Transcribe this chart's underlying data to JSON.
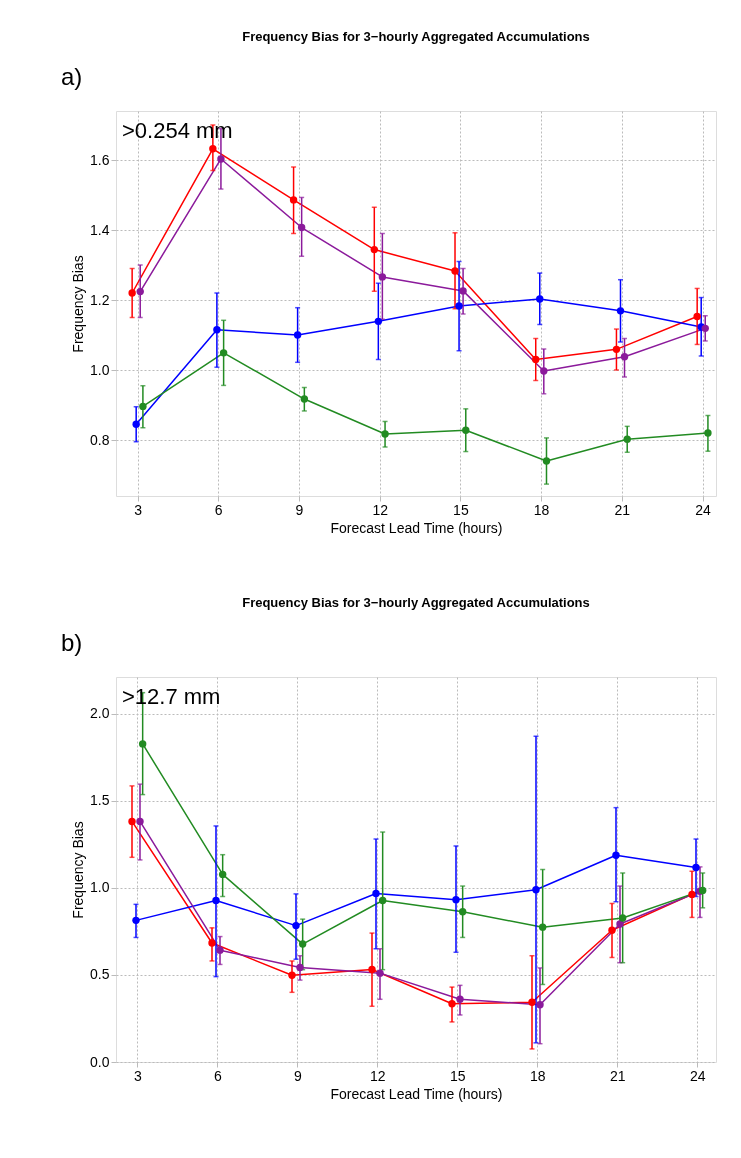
{
  "chart_data": [
    {
      "type": "line",
      "title": "Frequency Bias for 3−hourly Aggregated Accumulations",
      "xlabel": "Forecast Lead Time (hours)",
      "ylabel": "Frequency Bias",
      "annotations": [
        "a)",
        ">0.254 mm"
      ],
      "xlim": [
        2.2,
        24.5
      ],
      "xticks": [
        3,
        6,
        9,
        12,
        15,
        18,
        21,
        24
      ],
      "ylim": [
        0.64,
        1.74
      ],
      "yticks": [
        {
          "value": 0.8,
          "label": "0.8"
        },
        {
          "value": 1.0,
          "label": "1.0"
        },
        {
          "value": 1.2,
          "label": "1.2"
        },
        {
          "value": 1.4,
          "label": "1.4"
        },
        {
          "value": 1.6,
          "label": "1.6"
        }
      ],
      "grid": true,
      "legend": false,
      "marker": "circle",
      "line_style": "solid",
      "series": [
        {
          "color": "#ff0000",
          "x": [
            2.8,
            5.8,
            8.8,
            11.8,
            14.8,
            17.8,
            20.8,
            23.8
          ],
          "values": [
            1.22,
            1.632,
            1.486,
            1.344,
            1.283,
            1.03,
            1.059,
            1.153
          ],
          "errors": [
            [
              1.15,
              1.29
            ],
            [
              1.57,
              1.7
            ],
            [
              1.39,
              1.58
            ],
            [
              1.225,
              1.465
            ],
            [
              1.175,
              1.392
            ],
            [
              0.97,
              1.09
            ],
            [
              1.0,
              1.117
            ],
            [
              1.073,
              1.233
            ]
          ]
        },
        {
          "color": "#0000ff",
          "x": [
            2.95,
            5.95,
            8.95,
            11.95,
            14.95,
            17.95,
            20.95,
            23.95
          ],
          "values": [
            0.845,
            1.115,
            1.1,
            1.139,
            1.183,
            1.203,
            1.169,
            1.123
          ],
          "errors": [
            [
              0.795,
              0.895
            ],
            [
              1.008,
              1.22
            ],
            [
              1.022,
              1.178
            ],
            [
              1.03,
              1.248
            ],
            [
              1.055,
              1.31
            ],
            [
              1.13,
              1.277
            ],
            [
              1.08,
              1.258
            ],
            [
              1.04,
              1.207
            ]
          ]
        },
        {
          "color": "#8b1a9b",
          "x": [
            3.1,
            6.1,
            9.1,
            12.1,
            15.1,
            18.1,
            21.1,
            24.1
          ],
          "values": [
            1.224,
            1.603,
            1.407,
            1.266,
            1.226,
            0.997,
            1.038,
            1.119
          ],
          "errors": [
            [
              1.15,
              1.3
            ],
            [
              1.517,
              1.69
            ],
            [
              1.325,
              1.493
            ],
            [
              1.145,
              1.39
            ],
            [
              1.16,
              1.29
            ],
            [
              0.932,
              1.06
            ],
            [
              0.98,
              1.09
            ],
            [
              1.083,
              1.155
            ]
          ]
        },
        {
          "color": "#228b22",
          "x": [
            3.2,
            6.2,
            9.2,
            12.2,
            15.2,
            18.2,
            21.2,
            24.2
          ],
          "values": [
            0.896,
            1.049,
            0.917,
            0.817,
            0.828,
            0.74,
            0.802,
            0.82
          ],
          "errors": [
            [
              0.835,
              0.955
            ],
            [
              0.956,
              1.142
            ],
            [
              0.883,
              0.95
            ],
            [
              0.78,
              0.853
            ],
            [
              0.767,
              0.889
            ],
            [
              0.674,
              0.806
            ],
            [
              0.765,
              0.839
            ],
            [
              0.768,
              0.87
            ]
          ]
        }
      ]
    },
    {
      "type": "line",
      "title": "Frequency Bias for 3−hourly Aggregated Accumulations",
      "xlabel": "Forecast Lead Time (hours)",
      "ylabel": "Frequency Bias",
      "annotations": [
        "b)",
        ">12.7 mm"
      ],
      "xlim": [
        2.2,
        24.7
      ],
      "xticks": [
        3,
        6,
        9,
        12,
        15,
        18,
        21,
        24
      ],
      "ylim": [
        0.0,
        2.21
      ],
      "yticks": [
        {
          "value": 0.0,
          "label": "0.0"
        },
        {
          "value": 0.5,
          "label": "0.5"
        },
        {
          "value": 1.0,
          "label": "1.0"
        },
        {
          "value": 1.5,
          "label": "1.5"
        },
        {
          "value": 2.0,
          "label": "2.0"
        }
      ],
      "grid": true,
      "legend": false,
      "marker": "circle",
      "line_style": "solid",
      "series": [
        {
          "color": "#ff0000",
          "x": [
            2.8,
            5.8,
            8.8,
            11.8,
            14.8,
            17.8,
            20.8,
            23.8
          ],
          "values": [
            1.381,
            0.683,
            0.498,
            0.531,
            0.334,
            0.343,
            0.756,
            0.962
          ],
          "errors": [
            [
              1.175,
              1.585
            ],
            [
              0.58,
              0.77
            ],
            [
              0.4,
              0.58
            ],
            [
              0.32,
              0.74
            ],
            [
              0.23,
              0.43
            ],
            [
              0.075,
              0.61
            ],
            [
              0.6,
              0.91
            ],
            [
              0.83,
              1.095
            ]
          ]
        },
        {
          "color": "#0000ff",
          "x": [
            2.95,
            5.95,
            8.95,
            11.95,
            14.95,
            17.95,
            20.95,
            23.95
          ],
          "values": [
            0.813,
            0.927,
            0.783,
            0.967,
            0.932,
            0.989,
            1.187,
            1.117
          ],
          "errors": [
            [
              0.715,
              0.905
            ],
            [
              0.49,
              1.355
            ],
            [
              0.59,
              0.965
            ],
            [
              0.65,
              1.28
            ],
            [
              0.63,
              1.24
            ],
            [
              0.11,
              1.87
            ],
            [
              0.92,
              1.46
            ],
            [
              0.95,
              1.28
            ]
          ]
        },
        {
          "color": "#8b1a9b",
          "x": [
            3.1,
            6.1,
            9.1,
            12.1,
            15.1,
            18.1,
            21.1,
            24.1
          ],
          "values": [
            1.381,
            0.642,
            0.542,
            0.51,
            0.36,
            0.329,
            0.792,
            0.98
          ],
          "errors": [
            [
              1.16,
              1.595
            ],
            [
              0.56,
              0.72
            ],
            [
              0.47,
              0.61
            ],
            [
              0.36,
              0.65
            ],
            [
              0.27,
              0.44
            ],
            [
              0.105,
              0.54
            ],
            [
              0.57,
              1.01
            ],
            [
              0.83,
              1.12
            ]
          ]
        },
        {
          "color": "#228b22",
          "x": [
            3.2,
            6.2,
            9.2,
            12.2,
            15.2,
            18.2,
            21.2,
            24.2
          ],
          "values": [
            1.826,
            1.077,
            0.677,
            0.927,
            0.862,
            0.774,
            0.827,
            0.985
          ],
          "errors": [
            [
              1.535,
              2.12
            ],
            [
              0.95,
              1.19
            ],
            [
              0.53,
              0.82
            ],
            [
              0.53,
              1.32
            ],
            [
              0.715,
              1.01
            ],
            [
              0.445,
              1.105
            ],
            [
              0.57,
              1.085
            ],
            [
              0.885,
              1.085
            ]
          ]
        }
      ]
    }
  ]
}
